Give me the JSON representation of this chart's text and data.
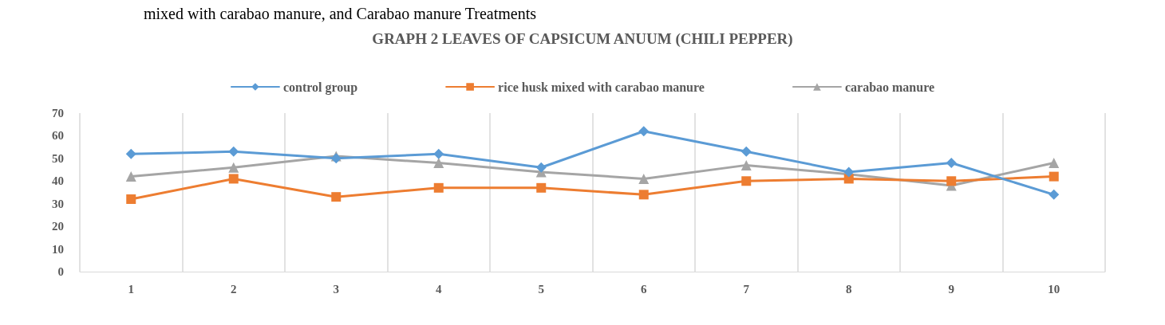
{
  "chart_data": {
    "type": "line",
    "title": "GRAPH 2 LEAVES OF CAPSICUM ANUUM (CHILI PEPPER)",
    "annotations": [
      "mixed with carabao manure, and Carabao manure Treatments"
    ],
    "categories": [
      "1",
      "2",
      "3",
      "4",
      "5",
      "6",
      "7",
      "8",
      "9",
      "10"
    ],
    "series": [
      {
        "name": "control group",
        "color": "#5b9bd5",
        "marker": "diamond",
        "values": [
          52,
          53,
          50,
          52,
          46,
          62,
          53,
          44,
          48,
          34
        ]
      },
      {
        "name": "rice husk mixed with carabao manure",
        "color": "#ed7d31",
        "marker": "square",
        "values": [
          32,
          41,
          33,
          37,
          37,
          34,
          40,
          41,
          40,
          42
        ]
      },
      {
        "name": "carabao manure",
        "color": "#a5a5a5",
        "marker": "triangle",
        "values": [
          42,
          46,
          51,
          48,
          44,
          41,
          47,
          43,
          38,
          48
        ]
      }
    ],
    "ylim": [
      0,
      70
    ],
    "yticks": [
      0,
      10,
      20,
      30,
      40,
      50,
      60,
      70
    ],
    "grid": "x",
    "legend": "top",
    "line_style": "solid"
  }
}
